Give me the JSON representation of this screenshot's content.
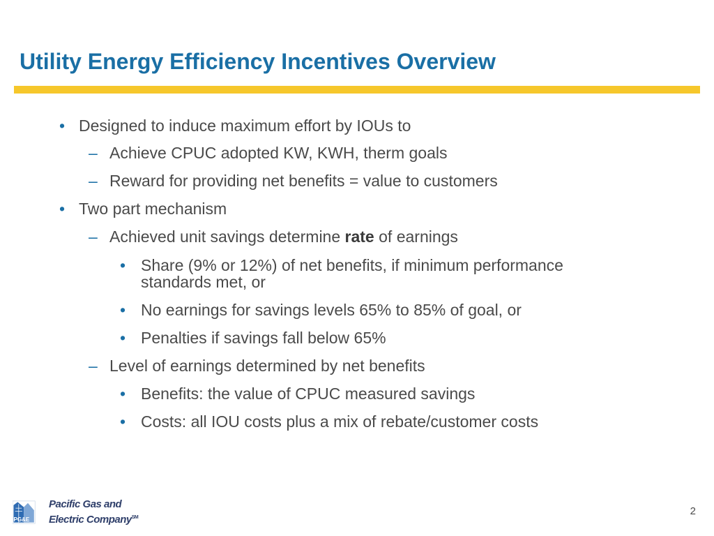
{
  "slide": {
    "title": "Utility Energy Efficiency Incentives Overview",
    "page_number": "2",
    "accent_color": "#f6c72b",
    "title_color": "#1a6fa5"
  },
  "bullets": [
    {
      "level": 1,
      "marker": "•",
      "text": "Designed to induce maximum effort by IOUs to"
    },
    {
      "level": 2,
      "marker": "–",
      "text": "Achieve CPUC adopted KW, KWH, therm goals"
    },
    {
      "level": 2,
      "marker": "–",
      "text": "Reward for providing net benefits = value to customers"
    },
    {
      "level": 1,
      "marker": "•",
      "text": "Two part mechanism"
    },
    {
      "level": 2,
      "marker": "–",
      "text_before": "Achieved unit savings determine ",
      "bold": "rate",
      "text_after": " of earnings"
    },
    {
      "level": 3,
      "marker": "•",
      "text": "Share (9% or 12%) of net benefits, if minimum performance",
      "text_cont": "standards met, or"
    },
    {
      "level": 3,
      "marker": "•",
      "text": "No earnings for  savings levels 65% to 85% of goal, or"
    },
    {
      "level": 3,
      "marker": "•",
      "text": "Penalties if savings fall below 65%"
    },
    {
      "level": 2,
      "marker": "–",
      "text": "Level of earnings determined by net benefits"
    },
    {
      "level": 3,
      "marker": "•",
      "text": "Benefits: the value of CPUC measured savings"
    },
    {
      "level": 3,
      "marker": "•",
      "text": "Costs: all IOU costs plus a mix of rebate/customer costs"
    }
  ],
  "logo": {
    "icon": "pge-logo-icon",
    "monogram": "PG&E",
    "line1": "Pacific Gas and",
    "line2": "Electric Company",
    "tm": "SM"
  }
}
